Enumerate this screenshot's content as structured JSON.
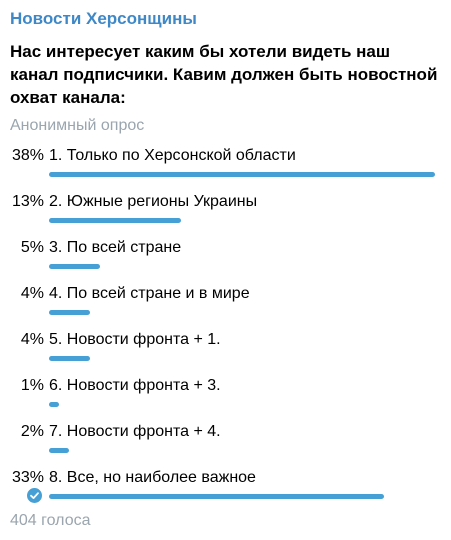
{
  "colors": {
    "accent": "#3e88c7",
    "bar": "#46a0d6",
    "muted": "#9aa5ae",
    "text": "#000000"
  },
  "poll": {
    "channel_name": "Новости Херсонщины",
    "question": "Нас интересует каким бы хотели видеть наш канал подписчики. Кавим должен быть новостной охват канала:",
    "type": "Анонимный опрос",
    "options": [
      {
        "percent": "38%",
        "label": "1. Только по Херсонской области",
        "value": 38,
        "selected": false
      },
      {
        "percent": "13%",
        "label": "2. Южные регионы Украины",
        "value": 13,
        "selected": false
      },
      {
        "percent": "5%",
        "label": "3. По всей стране",
        "value": 5,
        "selected": false
      },
      {
        "percent": "4%",
        "label": "4. По всей стране и в мире",
        "value": 4,
        "selected": false
      },
      {
        "percent": "4%",
        "label": "5. Новости фронта + 1.",
        "value": 4,
        "selected": false
      },
      {
        "percent": "1%",
        "label": "6. Новости фронта + 3.",
        "value": 1,
        "selected": false
      },
      {
        "percent": "2%",
        "label": "7. Новости фронта + 4.",
        "value": 2,
        "selected": false
      },
      {
        "percent": "33%",
        "label": "8. Все, но наиболее важное",
        "value": 33,
        "selected": true,
        "selected_icon": "checkmark-circle-icon"
      }
    ],
    "total_votes": "404 голоса"
  }
}
